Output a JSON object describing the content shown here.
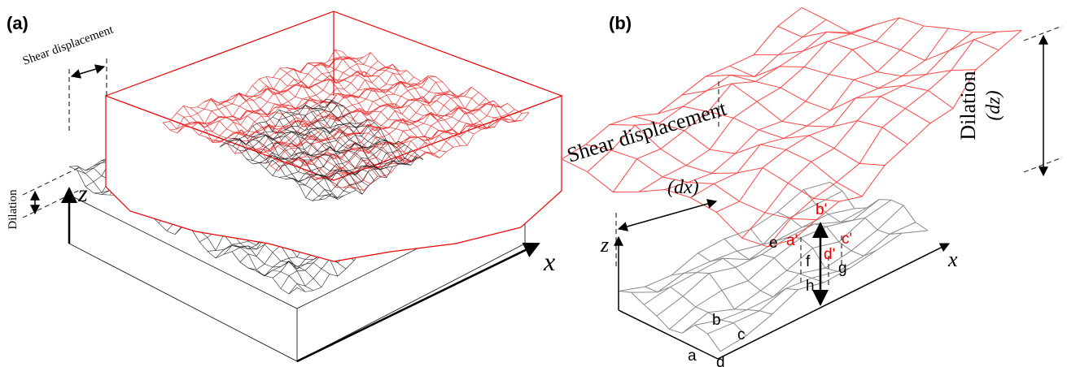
{
  "panel_a": {
    "label": "(a)",
    "shear_label": "Shear displacement",
    "dilation_label": "Dilation",
    "z_axis": "z",
    "x_axis": "x"
  },
  "panel_b": {
    "label": "(b)",
    "shear_label": "Shear displacement",
    "shear_symbol": "(dx)",
    "dilation_label": "Dilation",
    "dilation_symbol": "(dz)",
    "z_axis": "z",
    "x_axis": "x",
    "upper_points": [
      "a'",
      "b'",
      "c'",
      "d'"
    ],
    "lower_points": [
      "a",
      "b",
      "c",
      "d",
      "e",
      "f",
      "g",
      "h"
    ]
  }
}
